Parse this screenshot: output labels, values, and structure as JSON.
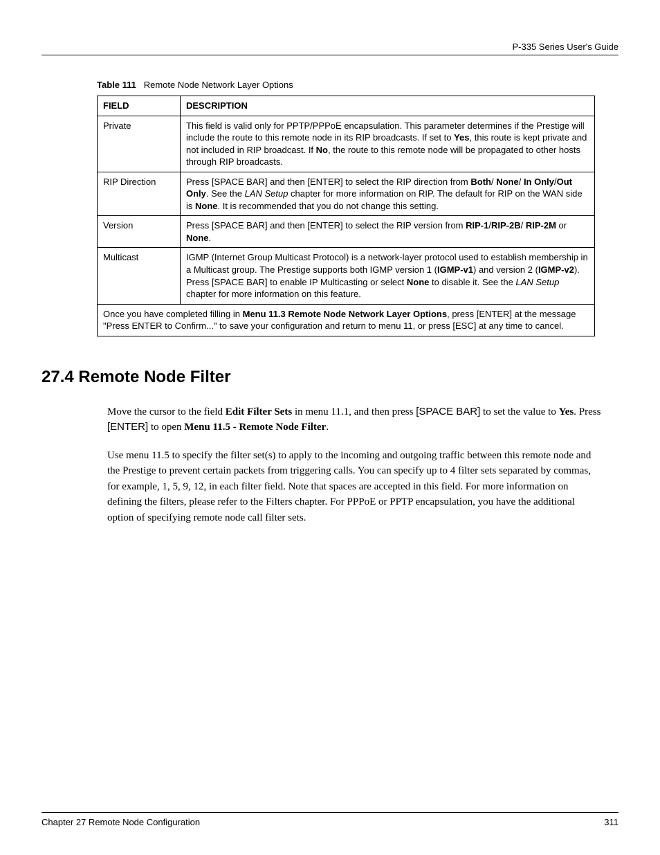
{
  "header": {
    "guide_title": "P-335 Series User's Guide"
  },
  "table_caption": {
    "label": "Table 111",
    "title": "Remote Node Network Layer Options"
  },
  "table": {
    "headers": {
      "field": "FIELD",
      "description": "DESCRIPTION"
    },
    "rows": [
      {
        "field": "Private",
        "desc_parts": [
          {
            "text": "This field is valid only for PPTP/PPPoE encapsulation. This parameter determines if the Prestige will include the route to this remote node in its RIP broadcasts. If set to "
          },
          {
            "text": "Yes",
            "bold": true
          },
          {
            "text": ", this route is kept private and not included in RIP broadcast. If "
          },
          {
            "text": "No",
            "bold": true
          },
          {
            "text": ", the route to this remote node will be propagated to other hosts through RIP broadcasts."
          }
        ]
      },
      {
        "field": "RIP Direction",
        "desc_parts": [
          {
            "text": "Press [SPACE BAR] and then [ENTER] to select the RIP direction from "
          },
          {
            "text": "Both",
            "bold": true
          },
          {
            "text": "/ "
          },
          {
            "text": "None",
            "bold": true
          },
          {
            "text": "/ "
          },
          {
            "text": "In Only",
            "bold": true
          },
          {
            "text": "/"
          },
          {
            "text": "Out Only",
            "bold": true
          },
          {
            "text": ". See the "
          },
          {
            "text": "LAN Setup",
            "italic": true
          },
          {
            "text": " chapter for more information on RIP. The default for RIP on the WAN side is "
          },
          {
            "text": "None",
            "bold": true
          },
          {
            "text": ". It is recommended that you do not change this setting."
          }
        ]
      },
      {
        "field": "Version",
        "desc_parts": [
          {
            "text": "Press [SPACE BAR] and then [ENTER] to select the RIP version from "
          },
          {
            "text": "RIP-1",
            "bold": true
          },
          {
            "text": "/"
          },
          {
            "text": "RIP-2B",
            "bold": true
          },
          {
            "text": "/ "
          },
          {
            "text": "RIP-2M",
            "bold": true
          },
          {
            "text": " or "
          },
          {
            "text": "None",
            "bold": true
          },
          {
            "text": "."
          }
        ]
      },
      {
        "field": "Multicast",
        "desc_parts": [
          {
            "text": "IGMP (Internet Group Multicast Protocol) is a network-layer protocol used to establish membership in a Multicast group. The Prestige supports both IGMP version 1 ("
          },
          {
            "text": "IGMP-v1",
            "bold": true
          },
          {
            "text": ") and version 2 ("
          },
          {
            "text": "IGMP-v2",
            "bold": true
          },
          {
            "text": "). Press [SPACE BAR] to enable IP Multicasting or select "
          },
          {
            "text": "None",
            "bold": true
          },
          {
            "text": " to disable it. See the "
          },
          {
            "text": "LAN Setup",
            "italic": true
          },
          {
            "text": " chapter for more information on this feature."
          }
        ]
      }
    ],
    "footer_parts": [
      {
        "text": "Once you have completed filling in "
      },
      {
        "text": "Menu 11.3 Remote Node Network Layer Options",
        "bold": true
      },
      {
        "text": ", press [ENTER] at the message \"Press ENTER to Confirm...\" to save your configuration and return to menu 11, or press [ESC] at any time to cancel."
      }
    ]
  },
  "section": {
    "heading": "27.4  Remote Node Filter",
    "para1_parts": [
      {
        "text": "Move the cursor to the field "
      },
      {
        "text": "Edit Filter Sets",
        "bold": true
      },
      {
        "text": " in menu 11.1, and then press "
      },
      {
        "text": "[SPACE BAR]",
        "sans": true
      },
      {
        "text": " to set the value to "
      },
      {
        "text": "Yes",
        "bold": true
      },
      {
        "text": ". Press "
      },
      {
        "text": "[ENTER]",
        "sans": true
      },
      {
        "text": " to open "
      },
      {
        "text": "Menu 11.5 - Remote Node Filter",
        "bold": true
      },
      {
        "text": "."
      }
    ],
    "para2": "Use menu 11.5 to specify the filter set(s) to apply to the incoming and outgoing traffic between this remote node and the Prestige to prevent certain packets from triggering calls. You can specify up to 4 filter sets separated by commas, for example, 1, 5, 9, 12, in each filter field. Note that spaces are accepted in this field. For more information on defining the filters, please refer to the Filters chapter. For PPPoE or PPTP encapsulation, you have the additional option of specifying remote node call filter sets."
  },
  "footer": {
    "chapter": "Chapter 27 Remote Node Configuration",
    "page": "311"
  },
  "colors": {
    "text": "#000000",
    "background": "#ffffff",
    "border": "#000000"
  },
  "typography": {
    "body_font": "Georgia/Times serif",
    "ui_font": "Arial/Helvetica sans-serif",
    "heading_size_pt": 18,
    "table_size_pt": 10,
    "body_size_pt": 11
  }
}
